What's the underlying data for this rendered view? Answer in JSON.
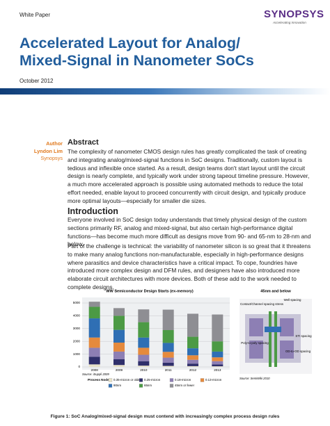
{
  "header": {
    "label": "White Paper",
    "logo": "SYNOPSYS",
    "tagline": "Accelerating Innovation"
  },
  "title": [
    "Accelerated Layout for Analog/",
    "Mixed-Signal in Nanometer SoCs"
  ],
  "date": "October 2012",
  "author": {
    "heading": "Author",
    "name": "Lyndon Lim",
    "company": "Synopsys"
  },
  "abstract": {
    "heading": "Abstract",
    "text": "The complexity of nanometer CMOS design rules has greatly complicated the task of creating and integrating analog/mixed-signal functions in SoC designs. Traditionally, custom layout is tedious and inflexible once started. As a result, design teams don't start layout until the circuit design is nearly complete, and typically work under strong tapeout timeline pressure. However, a much more accelerated approach is possible using automated methods to reduce the total effort needed, enable layout to proceed concurrently with circuit design, and typically produce more optimal layouts—especially for smaller die sizes."
  },
  "introduction": {
    "heading": "Introduction",
    "paragraphs": [
      "Everyone involved in SoC design today understands that timely physical design of the custom sections primarily RF, analog and mixed-signal, but also certain high-performance digital functions—has become much more difficult as designs move from 90- and 65-nm to 28-nm and below.",
      "Part of the challenge is technical: the variability of nanometer silicon is so great that it threatens to make many analog functions non-manufacturable, especially in high-performance designs where parasitics and device characteristics have a critical impact. To cope, foundries have introduced more complex design and DFM rules, and designers have also introduced more elaborate circuit architectures with more devices. Both of these add to the work needed to complete designs."
    ]
  },
  "chart_data": {
    "type": "bar",
    "stacked": true,
    "title": "WW Semiconductor Design Starts (ex-memory)",
    "source": "Source: iSuppli 2009",
    "legend_title": "Process Node",
    "grid": true,
    "categories": [
      "2008",
      "2009",
      "2010",
      "2011",
      "2012",
      "2013"
    ],
    "series": [
      {
        "name": "0.35-micron or older",
        "color": "#e8e2c8",
        "values": [
          200,
          150,
          100,
          80,
          60,
          50
        ]
      },
      {
        "name": "0.25-micron",
        "color": "#2f2f6b",
        "values": [
          600,
          450,
          350,
          250,
          200,
          150
        ]
      },
      {
        "name": "0.18-micron",
        "color": "#8d7fb4",
        "values": [
          700,
          600,
          500,
          400,
          300,
          250
        ]
      },
      {
        "name": "0.13-micron",
        "color": "#e58a3d",
        "values": [
          800,
          700,
          550,
          450,
          350,
          300
        ]
      },
      {
        "name": "90nm",
        "color": "#2f6fb4",
        "values": [
          1500,
          1000,
          800,
          700,
          550,
          450
        ]
      },
      {
        "name": "65nm",
        "color": "#4c9a45",
        "values": [
          900,
          1100,
          1200,
          1000,
          900,
          800
        ]
      },
      {
        "name": "45nm or fewer",
        "color": "#8e8e93",
        "values": [
          400,
          600,
          1000,
          1600,
          1800,
          2100
        ]
      }
    ],
    "ylim": [
      0,
      5000
    ],
    "yticks": [
      0,
      1000,
      2000,
      3000,
      4000,
      5000
    ]
  },
  "diagram": {
    "title": "45nm and below",
    "labels": [
      "Contact/Channel spacing stress",
      "Well spacing",
      "STI spacing",
      "Poly-to-poly spacing",
      "OD-to-OD spacing"
    ],
    "source": "Source: SemiWiki 2010"
  },
  "caption": "Figure 1: SoC Analog/mixed-signal design must contend with increasingly complex process design rules"
}
